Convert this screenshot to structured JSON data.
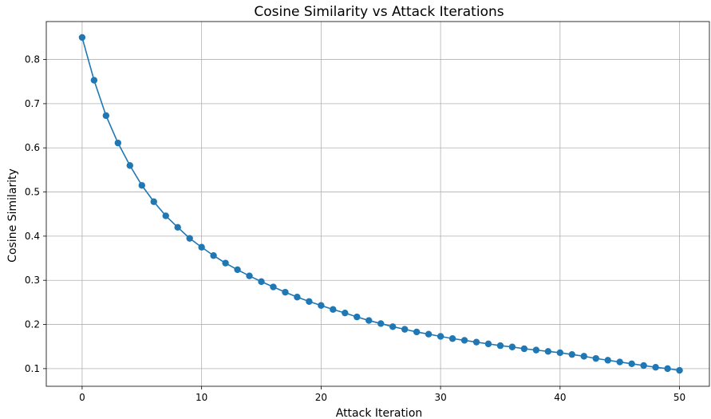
{
  "chart_data": {
    "type": "line",
    "title": "Cosine Similarity vs Attack Iterations",
    "xlabel": "Attack Iteration",
    "ylabel": "Cosine Similarity",
    "xlim": [
      -3,
      52.5
    ],
    "ylim": [
      0.06,
      0.886
    ],
    "xticks": [
      0,
      10,
      20,
      30,
      40,
      50
    ],
    "yticks": [
      0.1,
      0.2,
      0.3,
      0.4,
      0.5,
      0.6,
      0.7,
      0.8
    ],
    "grid": true,
    "color": "#1f77b4",
    "marker": "circle",
    "series": [
      {
        "x": [
          0,
          1,
          2,
          3,
          4,
          5,
          6,
          7,
          8,
          9,
          10,
          11,
          12,
          13,
          14,
          15,
          16,
          17,
          18,
          19,
          20,
          21,
          22,
          23,
          24,
          25,
          26,
          27,
          28,
          29,
          30,
          31,
          32,
          33,
          34,
          35,
          36,
          37,
          38,
          39,
          40,
          41,
          42,
          43,
          44,
          45,
          46,
          47,
          48,
          49,
          50
        ],
        "values": [
          0.85,
          0.753,
          0.673,
          0.611,
          0.56,
          0.515,
          0.478,
          0.446,
          0.42,
          0.395,
          0.375,
          0.356,
          0.339,
          0.324,
          0.31,
          0.297,
          0.285,
          0.273,
          0.262,
          0.252,
          0.243,
          0.234,
          0.226,
          0.217,
          0.209,
          0.202,
          0.195,
          0.189,
          0.183,
          0.178,
          0.173,
          0.168,
          0.164,
          0.16,
          0.156,
          0.152,
          0.149,
          0.145,
          0.142,
          0.139,
          0.136,
          0.132,
          0.128,
          0.123,
          0.119,
          0.115,
          0.111,
          0.107,
          0.103,
          0.1,
          0.096
        ]
      }
    ]
  }
}
